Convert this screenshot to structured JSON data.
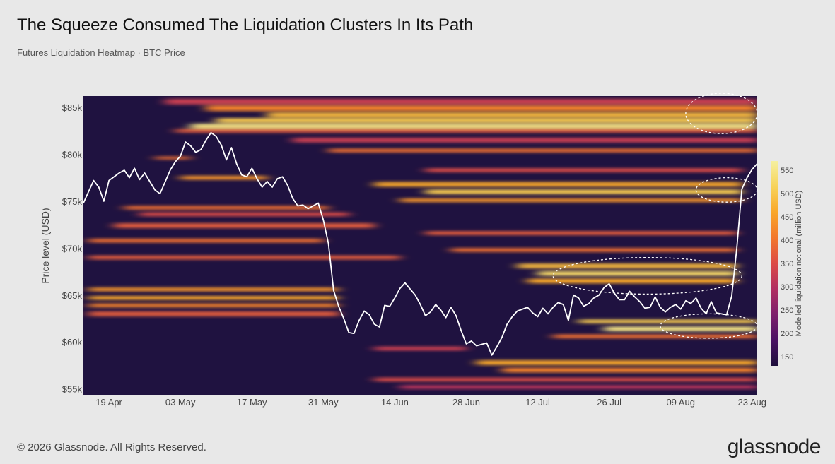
{
  "header": {
    "title": "The Squeeze Consumed The Liquidation Clusters In Its Path",
    "subtitle": "Futures Liquidation Heatmap · BTC Price"
  },
  "footer": {
    "copyright": "© 2026 Glassnode. All Rights Reserved.",
    "logo": "glassnode"
  },
  "chart_data": {
    "type": "heatmap",
    "title": "The Squeeze Consumed The Liquidation Clusters In Its Path",
    "subtitle": "Futures Liquidation Heatmap · BTC Price",
    "xlabel": "",
    "ylabel": "Price level (USD)",
    "colorbar_label": "Modelled liquidation notional (million USD)",
    "x_range": [
      "2024-04-14",
      "2024-08-24"
    ],
    "y_range": [
      54300,
      86200
    ],
    "x_ticks": [
      {
        "date": "2024-04-19",
        "label": "19 Apr"
      },
      {
        "date": "2024-05-03",
        "label": "03 May"
      },
      {
        "date": "2024-05-17",
        "label": "17 May"
      },
      {
        "date": "2024-05-31",
        "label": "31 May"
      },
      {
        "date": "2024-06-14",
        "label": "14 Jun"
      },
      {
        "date": "2024-06-28",
        "label": "28 Jun"
      },
      {
        "date": "2024-07-12",
        "label": "12 Jul"
      },
      {
        "date": "2024-07-26",
        "label": "26 Jul"
      },
      {
        "date": "2024-08-09",
        "label": "09 Aug"
      },
      {
        "date": "2024-08-23",
        "label": "23 Aug"
      }
    ],
    "y_ticks": [
      {
        "value": 55000,
        "label": "$55k"
      },
      {
        "value": 60000,
        "label": "$60k"
      },
      {
        "value": 65000,
        "label": "$65k"
      },
      {
        "value": 70000,
        "label": "$70k"
      },
      {
        "value": 75000,
        "label": "$75k"
      },
      {
        "value": 80000,
        "label": "$80k"
      },
      {
        "value": 85000,
        "label": "$85k"
      }
    ],
    "colorbar": {
      "min": 130,
      "max": 570,
      "ticks": [
        150,
        200,
        250,
        300,
        350,
        400,
        450,
        500,
        550
      ],
      "colors": [
        "#1e0f3c",
        "#4a1263",
        "#7d1f6c",
        "#b02e61",
        "#dc4b46",
        "#f2772c",
        "#f9a72a",
        "#f7d35a",
        "#f5f0a0"
      ]
    },
    "background_color": "#1f1240",
    "price_line_color": "#ffffff",
    "series": [
      {
        "name": "BTC Price",
        "points": [
          [
            "2024-04-14",
            74800
          ],
          [
            "2024-04-16",
            77200
          ],
          [
            "2024-04-17",
            76500
          ],
          [
            "2024-04-18",
            75000
          ],
          [
            "2024-04-19",
            77200
          ],
          [
            "2024-04-21",
            78000
          ],
          [
            "2024-04-22",
            78300
          ],
          [
            "2024-04-23",
            77500
          ],
          [
            "2024-04-24",
            78500
          ],
          [
            "2024-04-25",
            77300
          ],
          [
            "2024-04-26",
            78000
          ],
          [
            "2024-04-28",
            76200
          ],
          [
            "2024-04-29",
            75800
          ],
          [
            "2024-05-01",
            78300
          ],
          [
            "2024-05-02",
            79200
          ],
          [
            "2024-05-03",
            79800
          ],
          [
            "2024-05-04",
            81300
          ],
          [
            "2024-05-05",
            80900
          ],
          [
            "2024-05-06",
            80200
          ],
          [
            "2024-05-07",
            80500
          ],
          [
            "2024-05-08",
            81500
          ],
          [
            "2024-05-09",
            82300
          ],
          [
            "2024-05-10",
            81900
          ],
          [
            "2024-05-11",
            81000
          ],
          [
            "2024-05-12",
            79400
          ],
          [
            "2024-05-13",
            80700
          ],
          [
            "2024-05-14",
            79000
          ],
          [
            "2024-05-15",
            77800
          ],
          [
            "2024-05-16",
            77600
          ],
          [
            "2024-05-17",
            78500
          ],
          [
            "2024-05-18",
            77400
          ],
          [
            "2024-05-19",
            76500
          ],
          [
            "2024-05-20",
            77100
          ],
          [
            "2024-05-21",
            76500
          ],
          [
            "2024-05-22",
            77400
          ],
          [
            "2024-05-23",
            77600
          ],
          [
            "2024-05-24",
            76700
          ],
          [
            "2024-05-25",
            75300
          ],
          [
            "2024-05-26",
            74500
          ],
          [
            "2024-05-27",
            74600
          ],
          [
            "2024-05-28",
            74200
          ],
          [
            "2024-05-30",
            74800
          ],
          [
            "2024-05-31",
            73000
          ],
          [
            "2024-06-01",
            70500
          ],
          [
            "2024-06-02",
            65500
          ],
          [
            "2024-06-03",
            63800
          ],
          [
            "2024-06-04",
            62500
          ],
          [
            "2024-06-05",
            61000
          ],
          [
            "2024-06-06",
            60900
          ],
          [
            "2024-06-07",
            62300
          ],
          [
            "2024-06-08",
            63300
          ],
          [
            "2024-06-09",
            62900
          ],
          [
            "2024-06-10",
            61900
          ],
          [
            "2024-06-11",
            61600
          ],
          [
            "2024-06-12",
            63900
          ],
          [
            "2024-06-13",
            63800
          ],
          [
            "2024-06-14",
            64700
          ],
          [
            "2024-06-15",
            65700
          ],
          [
            "2024-06-16",
            66300
          ],
          [
            "2024-06-18",
            65000
          ],
          [
            "2024-06-19",
            64000
          ],
          [
            "2024-06-20",
            62800
          ],
          [
            "2024-06-21",
            63200
          ],
          [
            "2024-06-22",
            64000
          ],
          [
            "2024-06-23",
            63400
          ],
          [
            "2024-06-24",
            62600
          ],
          [
            "2024-06-25",
            63700
          ],
          [
            "2024-06-26",
            62800
          ],
          [
            "2024-06-27",
            61200
          ],
          [
            "2024-06-28",
            59800
          ],
          [
            "2024-06-29",
            60100
          ],
          [
            "2024-06-30",
            59600
          ],
          [
            "2024-07-02",
            59900
          ],
          [
            "2024-07-03",
            58600
          ],
          [
            "2024-07-04",
            59500
          ],
          [
            "2024-07-05",
            60500
          ],
          [
            "2024-07-06",
            61900
          ],
          [
            "2024-07-07",
            62700
          ],
          [
            "2024-07-08",
            63300
          ],
          [
            "2024-07-10",
            63700
          ],
          [
            "2024-07-11",
            63100
          ],
          [
            "2024-07-12",
            62700
          ],
          [
            "2024-07-13",
            63600
          ],
          [
            "2024-07-14",
            63000
          ],
          [
            "2024-07-15",
            63700
          ],
          [
            "2024-07-16",
            64200
          ],
          [
            "2024-07-17",
            64000
          ],
          [
            "2024-07-18",
            62300
          ],
          [
            "2024-07-19",
            65000
          ],
          [
            "2024-07-20",
            64700
          ],
          [
            "2024-07-21",
            63800
          ],
          [
            "2024-07-22",
            64100
          ],
          [
            "2024-07-23",
            64700
          ],
          [
            "2024-07-24",
            65000
          ],
          [
            "2024-07-25",
            65800
          ],
          [
            "2024-07-26",
            66200
          ],
          [
            "2024-07-27",
            65200
          ],
          [
            "2024-07-28",
            64500
          ],
          [
            "2024-07-29",
            64500
          ],
          [
            "2024-07-30",
            65400
          ],
          [
            "2024-07-31",
            64800
          ],
          [
            "2024-08-01",
            64300
          ],
          [
            "2024-08-02",
            63600
          ],
          [
            "2024-08-03",
            63700
          ],
          [
            "2024-08-04",
            64800
          ],
          [
            "2024-08-05",
            63700
          ],
          [
            "2024-08-06",
            63200
          ],
          [
            "2024-08-07",
            63700
          ],
          [
            "2024-08-08",
            64000
          ],
          [
            "2024-08-09",
            63500
          ],
          [
            "2024-08-10",
            64400
          ],
          [
            "2024-08-11",
            64100
          ],
          [
            "2024-08-12",
            64700
          ],
          [
            "2024-08-13",
            63600
          ],
          [
            "2024-08-14",
            63000
          ],
          [
            "2024-08-15",
            64300
          ],
          [
            "2024-08-16",
            63100
          ],
          [
            "2024-08-17",
            63000
          ],
          [
            "2024-08-18",
            62900
          ],
          [
            "2024-08-19",
            64900
          ],
          [
            "2024-08-20",
            70000
          ],
          [
            "2024-08-21",
            76300
          ],
          [
            "2024-08-22",
            77500
          ],
          [
            "2024-08-23",
            78400
          ],
          [
            "2024-08-24",
            79000
          ]
        ]
      }
    ],
    "liquidation_bands": [
      {
        "center": 85600,
        "width": 600,
        "from": "2024-04-30",
        "to": "2024-08-24",
        "intensity": 0.45
      },
      {
        "center": 84900,
        "width": 600,
        "from": "2024-05-08",
        "to": "2024-08-24",
        "intensity": 0.65
      },
      {
        "center": 84200,
        "width": 500,
        "from": "2024-05-20",
        "to": "2024-08-24",
        "intensity": 0.8
      },
      {
        "center": 83600,
        "width": 500,
        "from": "2024-05-10",
        "to": "2024-08-24",
        "intensity": 0.85
      },
      {
        "center": 83000,
        "width": 500,
        "from": "2024-05-05",
        "to": "2024-08-24",
        "intensity": 0.95
      },
      {
        "center": 82500,
        "width": 400,
        "from": "2024-05-02",
        "to": "2024-08-24",
        "intensity": 0.55
      },
      {
        "center": 81500,
        "width": 500,
        "from": "2024-05-25",
        "to": "2024-08-24",
        "intensity": 0.45
      },
      {
        "center": 80400,
        "width": 400,
        "from": "2024-06-01",
        "to": "2024-08-24",
        "intensity": 0.6
      },
      {
        "center": 79600,
        "width": 300,
        "from": "2024-04-28",
        "to": "2024-05-05",
        "intensity": 0.6
      },
      {
        "center": 78300,
        "width": 400,
        "from": "2024-06-20",
        "to": "2024-08-21",
        "intensity": 0.5
      },
      {
        "center": 77500,
        "width": 400,
        "from": "2024-05-03",
        "to": "2024-05-20",
        "intensity": 0.7
      },
      {
        "center": 76800,
        "width": 500,
        "from": "2024-06-10",
        "to": "2024-08-21",
        "intensity": 0.75
      },
      {
        "center": 76000,
        "width": 500,
        "from": "2024-06-20",
        "to": "2024-08-21",
        "intensity": 0.85
      },
      {
        "center": 75100,
        "width": 400,
        "from": "2024-06-15",
        "to": "2024-08-21",
        "intensity": 0.7
      },
      {
        "center": 74300,
        "width": 400,
        "from": "2024-04-22",
        "to": "2024-06-01",
        "intensity": 0.6
      },
      {
        "center": 73600,
        "width": 400,
        "from": "2024-04-25",
        "to": "2024-06-05",
        "intensity": 0.5
      },
      {
        "center": 72400,
        "width": 500,
        "from": "2024-04-20",
        "to": "2024-06-10",
        "intensity": 0.55
      },
      {
        "center": 71600,
        "width": 400,
        "from": "2024-06-20",
        "to": "2024-08-20",
        "intensity": 0.55
      },
      {
        "center": 70800,
        "width": 400,
        "from": "2024-04-15",
        "to": "2024-05-31",
        "intensity": 0.6
      },
      {
        "center": 69800,
        "width": 400,
        "from": "2024-06-25",
        "to": "2024-08-20",
        "intensity": 0.6
      },
      {
        "center": 69000,
        "width": 400,
        "from": "2024-04-15",
        "to": "2024-06-15",
        "intensity": 0.55
      },
      {
        "center": 68100,
        "width": 500,
        "from": "2024-07-08",
        "to": "2024-08-20",
        "intensity": 0.8
      },
      {
        "center": 67300,
        "width": 500,
        "from": "2024-07-12",
        "to": "2024-08-20",
        "intensity": 0.9
      },
      {
        "center": 66500,
        "width": 500,
        "from": "2024-07-10",
        "to": "2024-08-20",
        "intensity": 0.75
      },
      {
        "center": 65600,
        "width": 400,
        "from": "2024-04-15",
        "to": "2024-06-03",
        "intensity": 0.7
      },
      {
        "center": 64700,
        "width": 400,
        "from": "2024-04-15",
        "to": "2024-06-03",
        "intensity": 0.75
      },
      {
        "center": 63900,
        "width": 400,
        "from": "2024-04-15",
        "to": "2024-06-03",
        "intensity": 0.65
      },
      {
        "center": 63000,
        "width": 500,
        "from": "2024-04-15",
        "to": "2024-06-03",
        "intensity": 0.55
      },
      {
        "center": 62200,
        "width": 400,
        "from": "2024-07-20",
        "to": "2024-08-24",
        "intensity": 0.85
      },
      {
        "center": 61400,
        "width": 500,
        "from": "2024-07-25",
        "to": "2024-08-24",
        "intensity": 0.95
      },
      {
        "center": 60600,
        "width": 400,
        "from": "2024-07-15",
        "to": "2024-08-24",
        "intensity": 0.6
      },
      {
        "center": 59300,
        "width": 400,
        "from": "2024-06-10",
        "to": "2024-06-28",
        "intensity": 0.45
      },
      {
        "center": 57800,
        "width": 500,
        "from": "2024-06-30",
        "to": "2024-08-24",
        "intensity": 0.75
      },
      {
        "center": 57000,
        "width": 500,
        "from": "2024-07-05",
        "to": "2024-08-24",
        "intensity": 0.65
      },
      {
        "center": 56000,
        "width": 400,
        "from": "2024-06-10",
        "to": "2024-08-24",
        "intensity": 0.5
      },
      {
        "center": 55200,
        "width": 400,
        "from": "2024-06-15",
        "to": "2024-08-24",
        "intensity": 0.4
      }
    ],
    "annotations": [
      {
        "type": "dashed-ellipse",
        "x_from": "2024-08-10",
        "x_to": "2024-08-24",
        "y_from": 82200,
        "y_to": 86500
      },
      {
        "type": "dashed-ellipse",
        "x_from": "2024-08-12",
        "x_to": "2024-08-24",
        "y_from": 74900,
        "y_to": 77500
      },
      {
        "type": "dashed-ellipse",
        "x_from": "2024-07-15",
        "x_to": "2024-08-21",
        "y_from": 65100,
        "y_to": 69000
      },
      {
        "type": "dashed-ellipse",
        "x_from": "2024-08-05",
        "x_to": "2024-08-24",
        "y_from": 60400,
        "y_to": 63000
      }
    ]
  }
}
